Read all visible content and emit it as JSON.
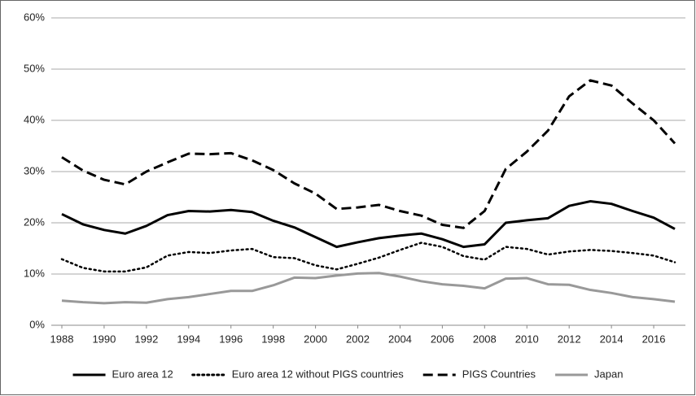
{
  "chart_data": {
    "type": "line",
    "x": [
      1988,
      1989,
      1990,
      1991,
      1992,
      1993,
      1994,
      1995,
      1996,
      1997,
      1998,
      1999,
      2000,
      2001,
      2002,
      2003,
      2004,
      2005,
      2006,
      2007,
      2008,
      2009,
      2010,
      2011,
      2012,
      2013,
      2014,
      2015,
      2016,
      2017
    ],
    "xlim": [
      1987.5,
      2017.5
    ],
    "xticks": [
      1988,
      1990,
      1992,
      1994,
      1996,
      1998,
      2000,
      2002,
      2004,
      2006,
      2008,
      2010,
      2012,
      2014,
      2016
    ],
    "ylim": [
      0,
      60
    ],
    "yticks": [
      {
        "value": 0,
        "label": "0%"
      },
      {
        "value": 10,
        "label": "10%"
      },
      {
        "value": 20,
        "label": "20%"
      },
      {
        "value": 30,
        "label": "30%"
      },
      {
        "value": 40,
        "label": "40%"
      },
      {
        "value": 50,
        "label": "50%"
      },
      {
        "value": 60,
        "label": "60%"
      }
    ],
    "grid": true,
    "legend": "bottom",
    "series": [
      {
        "name": "Euro area 12",
        "color": "#000000",
        "dash": "solid",
        "values": [
          21.7,
          19.7,
          18.6,
          17.9,
          19.4,
          21.5,
          22.3,
          22.2,
          22.5,
          22.1,
          20.4,
          19.1,
          17.2,
          15.3,
          16.2,
          17.0,
          17.5,
          17.9,
          16.8,
          15.3,
          15.8,
          20.0,
          20.5,
          20.9,
          23.3,
          24.2,
          23.7,
          22.3,
          21.0,
          18.8
        ]
      },
      {
        "name": "Euro area 12 without PIGS countries",
        "color": "#000000",
        "dash": "dotted",
        "values": [
          12.9,
          11.2,
          10.5,
          10.5,
          11.3,
          13.6,
          14.3,
          14.1,
          14.6,
          14.9,
          13.3,
          13.1,
          11.7,
          10.9,
          12.0,
          13.2,
          14.7,
          16.1,
          15.3,
          13.5,
          12.8,
          15.3,
          14.9,
          13.8,
          14.4,
          14.7,
          14.5,
          14.1,
          13.6,
          12.3
        ]
      },
      {
        "name": "PIGS Countries",
        "color": "#000000",
        "dash": "dashed",
        "values": [
          32.8,
          30.2,
          28.4,
          27.5,
          30.0,
          31.8,
          33.5,
          33.4,
          33.6,
          32.2,
          30.3,
          27.7,
          25.7,
          22.7,
          23.0,
          23.5,
          22.3,
          21.4,
          19.6,
          19.0,
          22.3,
          30.5,
          33.9,
          38.0,
          44.7,
          47.8,
          46.8,
          43.3,
          40.0,
          35.5
        ]
      },
      {
        "name": "Japan",
        "color": "#999999",
        "dash": "solid",
        "values": [
          4.8,
          4.5,
          4.3,
          4.5,
          4.4,
          5.1,
          5.5,
          6.1,
          6.7,
          6.7,
          7.8,
          9.3,
          9.2,
          9.7,
          10.1,
          10.2,
          9.5,
          8.6,
          8.0,
          7.7,
          7.2,
          9.1,
          9.2,
          8.0,
          7.9,
          6.9,
          6.3,
          5.5,
          5.1,
          4.6
        ]
      }
    ]
  }
}
